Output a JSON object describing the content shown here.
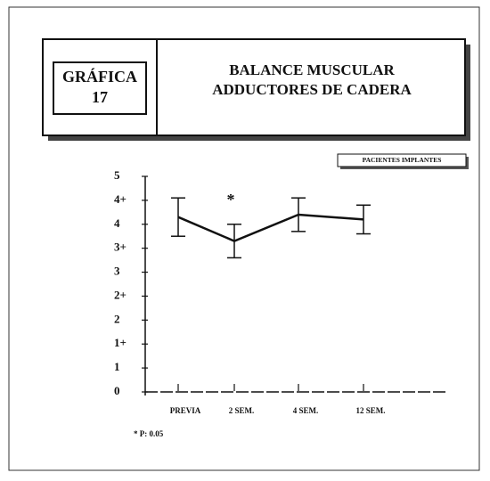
{
  "chart_data": {
    "type": "line",
    "figure_label": "GRÁFICA",
    "figure_number": "17",
    "title": [
      "BALANCE MUSCULAR",
      "ADDUCTORES DE CADERA"
    ],
    "badge": "PACIENTES IMPLANTES",
    "categories": [
      "PREVIA",
      "2 SEM.",
      "4 SEM.",
      "12 SEM."
    ],
    "series": [
      {
        "values": [
          7.3,
          6.3,
          7.4,
          7.2
        ],
        "errors": [
          0.8,
          0.7,
          0.7,
          0.6
        ],
        "color": "#111"
      }
    ],
    "ylim": [
      0,
      9
    ],
    "yticks": [
      {
        "value": 0,
        "label": "0"
      },
      {
        "value": 1,
        "label": "1"
      },
      {
        "value": 2,
        "label": "1+"
      },
      {
        "value": 3,
        "label": "2"
      },
      {
        "value": 4,
        "label": "2+"
      },
      {
        "value": 5,
        "label": "3"
      },
      {
        "value": 6,
        "label": "3+"
      },
      {
        "value": 7,
        "label": "4"
      },
      {
        "value": 8,
        "label": "4+"
      },
      {
        "value": 9,
        "label": "5"
      }
    ],
    "annotation": {
      "text": "*",
      "category": 1
    },
    "footnote": "* P: 0.05"
  }
}
